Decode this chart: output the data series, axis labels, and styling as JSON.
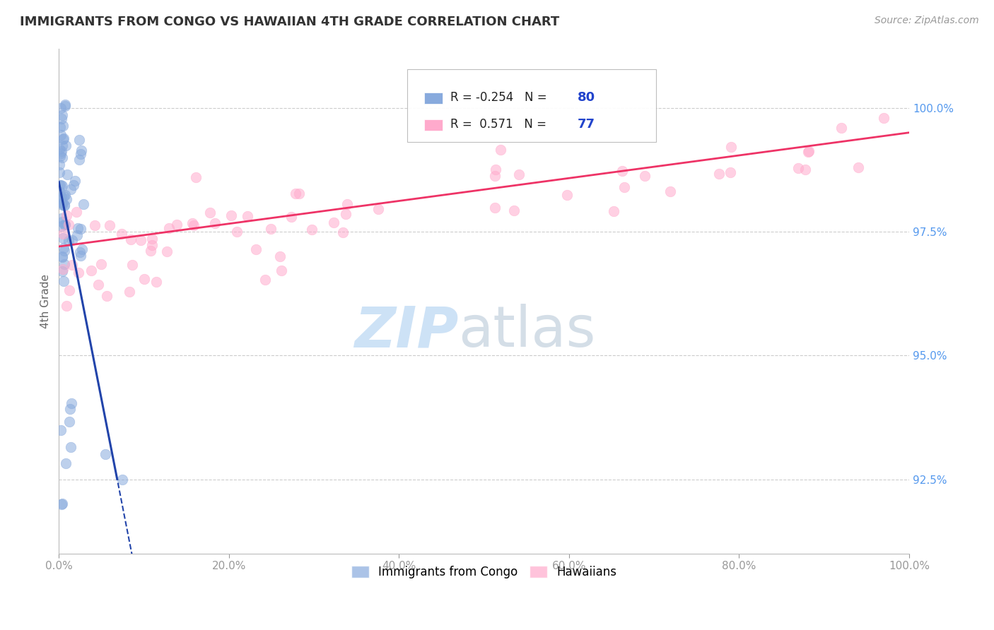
{
  "title": "IMMIGRANTS FROM CONGO VS HAWAIIAN 4TH GRADE CORRELATION CHART",
  "source": "Source: ZipAtlas.com",
  "ylabel": "4th Grade",
  "xlim": [
    0.0,
    100.0
  ],
  "ylim": [
    91.0,
    101.2
  ],
  "yticks": [
    92.5,
    95.0,
    97.5,
    100.0
  ],
  "yticklabels": [
    "92.5%",
    "95.0%",
    "97.5%",
    "100.0%"
  ],
  "xticks": [
    0.0,
    20.0,
    40.0,
    60.0,
    80.0,
    100.0
  ],
  "xticklabels": [
    "0.0%",
    "20.0%",
    "40.0%",
    "60.0%",
    "80.0%",
    "100.0%"
  ],
  "r_congo": -0.254,
  "n_congo": 80,
  "r_hawaiian": 0.571,
  "n_hawaiian": 77,
  "congo_color": "#88AADD",
  "hawaiian_color": "#FFAACC",
  "congo_line_color": "#2244AA",
  "hawaiian_line_color": "#EE3366",
  "grid_color": "#CCCCCC",
  "tick_color_y": "#5599EE",
  "tick_color_x": "#999999"
}
